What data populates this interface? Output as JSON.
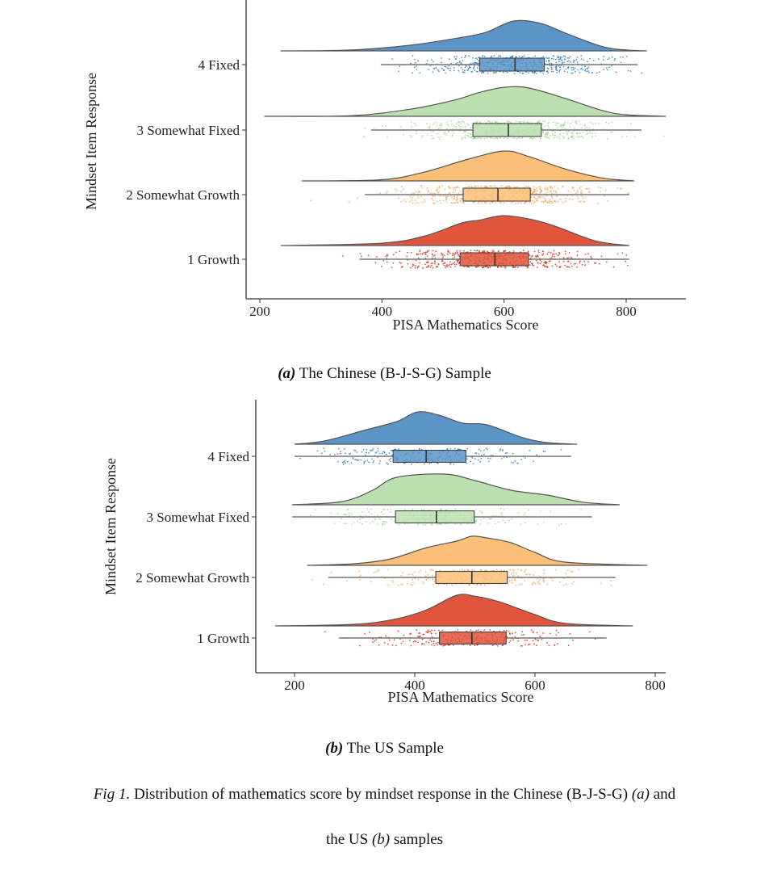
{
  "chart_data": [
    {
      "type": "raincloud",
      "panel_label": "(a)",
      "caption": "The Chinese (B-J-S-G) Sample",
      "xlabel": "PISA Mathematics Score",
      "ylabel": "Mindset Item Response",
      "xlim": [
        180,
        880
      ],
      "xticks": [
        200,
        400,
        600,
        800
      ],
      "grid": false,
      "groups": [
        {
          "label": "4 Fixed",
          "color": "#5b95c8",
          "point_color": "#3a7fbf",
          "box": {
            "whisker_low": 398,
            "q1": 560,
            "median": 618,
            "q3": 666,
            "whisker_high": 818
          },
          "density": [
            [
              234,
              0
            ],
            [
              350,
              0.03
            ],
            [
              450,
              0.2
            ],
            [
              530,
              0.45
            ],
            [
              570,
              0.62
            ],
            [
              616,
              1
            ],
            [
              660,
              0.92
            ],
            [
              700,
              0.6
            ],
            [
              760,
              0.15
            ],
            [
              800,
              0.03
            ],
            [
              834,
              0
            ]
          ]
        },
        {
          "label": "3 Somewhat Fixed",
          "color": "#bcdfb0",
          "point_color": "#a3d394",
          "box": {
            "whisker_low": 382,
            "q1": 549,
            "median": 607,
            "q3": 661,
            "whisker_high": 825
          },
          "density": [
            [
              207,
              0
            ],
            [
              350,
              0.02
            ],
            [
              450,
              0.25
            ],
            [
              520,
              0.55
            ],
            [
              560,
              0.8
            ],
            [
              600,
              0.97
            ],
            [
              640,
              0.95
            ],
            [
              700,
              0.6
            ],
            [
              760,
              0.2
            ],
            [
              800,
              0.05
            ],
            [
              865,
              0
            ]
          ]
        },
        {
          "label": "2 Somewhat Growth",
          "color": "#fbbf78",
          "point_color": "#f5a55a",
          "box": {
            "whisker_low": 372,
            "q1": 533,
            "median": 590,
            "q3": 643,
            "whisker_high": 805
          },
          "density": [
            [
              269,
              0
            ],
            [
              400,
              0.04
            ],
            [
              470,
              0.3
            ],
            [
              540,
              0.72
            ],
            [
              600,
              1
            ],
            [
              640,
              0.82
            ],
            [
              700,
              0.4
            ],
            [
              760,
              0.1
            ],
            [
              813,
              0
            ]
          ]
        },
        {
          "label": "1 Growth",
          "color": "#e0553b",
          "point_color": "#d7301f",
          "box": {
            "whisker_low": 363,
            "q1": 528,
            "median": 585,
            "q3": 640,
            "whisker_high": 805
          },
          "density": [
            [
              234,
              0
            ],
            [
              400,
              0.08
            ],
            [
              470,
              0.32
            ],
            [
              530,
              0.75
            ],
            [
              560,
              0.85
            ],
            [
              600,
              1
            ],
            [
              650,
              0.85
            ],
            [
              690,
              0.6
            ],
            [
              750,
              0.15
            ],
            [
              805,
              0
            ]
          ]
        }
      ]
    },
    {
      "type": "raincloud",
      "panel_label": "(b)",
      "caption": "The US Sample",
      "xlabel": "PISA Mathematics Score",
      "ylabel": "Mindset Item Response",
      "xlim": [
        140,
        820
      ],
      "xticks": [
        200,
        400,
        600,
        800
      ],
      "grid": false,
      "groups": [
        {
          "label": "4 Fixed",
          "color": "#5b95c8",
          "point_color": "#3a7fbf",
          "box": {
            "whisker_low": 200,
            "q1": 364,
            "median": 419,
            "q3": 485,
            "whisker_high": 660
          },
          "density": [
            [
              200,
              0
            ],
            [
              250,
              0.1
            ],
            [
              320,
              0.45
            ],
            [
              370,
              0.7
            ],
            [
              405,
              1
            ],
            [
              440,
              0.9
            ],
            [
              480,
              0.65
            ],
            [
              520,
              0.6
            ],
            [
              580,
              0.2
            ],
            [
              620,
              0.05
            ],
            [
              670,
              0
            ]
          ]
        },
        {
          "label": "3 Somewhat Fixed",
          "color": "#bcdfb0",
          "point_color": "#a3d394",
          "box": {
            "whisker_low": 196,
            "q1": 368,
            "median": 436,
            "q3": 499,
            "whisker_high": 695
          },
          "density": [
            [
              196,
              0
            ],
            [
              280,
              0.1
            ],
            [
              330,
              0.45
            ],
            [
              370,
              0.85
            ],
            [
              450,
              0.95
            ],
            [
              500,
              0.75
            ],
            [
              560,
              0.45
            ],
            [
              620,
              0.3
            ],
            [
              680,
              0.08
            ],
            [
              741,
              0
            ]
          ]
        },
        {
          "label": "2 Somewhat Growth",
          "color": "#fbbf78",
          "point_color": "#f5a55a",
          "box": {
            "whisker_low": 256,
            "q1": 435,
            "median": 495,
            "q3": 554,
            "whisker_high": 734
          },
          "density": [
            [
              221,
              0
            ],
            [
              300,
              0.05
            ],
            [
              360,
              0.2
            ],
            [
              420,
              0.55
            ],
            [
              470,
              0.75
            ],
            [
              495,
              0.9
            ],
            [
              520,
              0.85
            ],
            [
              560,
              0.7
            ],
            [
              600,
              0.4
            ],
            [
              650,
              0.1
            ],
            [
              787,
              0
            ]
          ]
        },
        {
          "label": "1 Growth",
          "color": "#e0553b",
          "point_color": "#d7301f",
          "box": {
            "whisker_low": 274,
            "q1": 441,
            "median": 495,
            "q3": 552,
            "whisker_high": 719
          },
          "density": [
            [
              168,
              0
            ],
            [
              300,
              0.05
            ],
            [
              370,
              0.22
            ],
            [
              420,
              0.5
            ],
            [
              470,
              0.95
            ],
            [
              500,
              0.92
            ],
            [
              540,
              0.75
            ],
            [
              600,
              0.35
            ],
            [
              650,
              0.08
            ],
            [
              763,
              0
            ]
          ]
        }
      ]
    }
  ],
  "figure_caption": {
    "fig_label": "Fig 1.",
    "text_1": " Distribution of mathematics score by mindset response in the Chinese (B-J-S-G) ",
    "ref_a": "(a)",
    "text_2": " and",
    "text_3": "the US ",
    "ref_b": "(b)",
    "text_4": " samples"
  }
}
